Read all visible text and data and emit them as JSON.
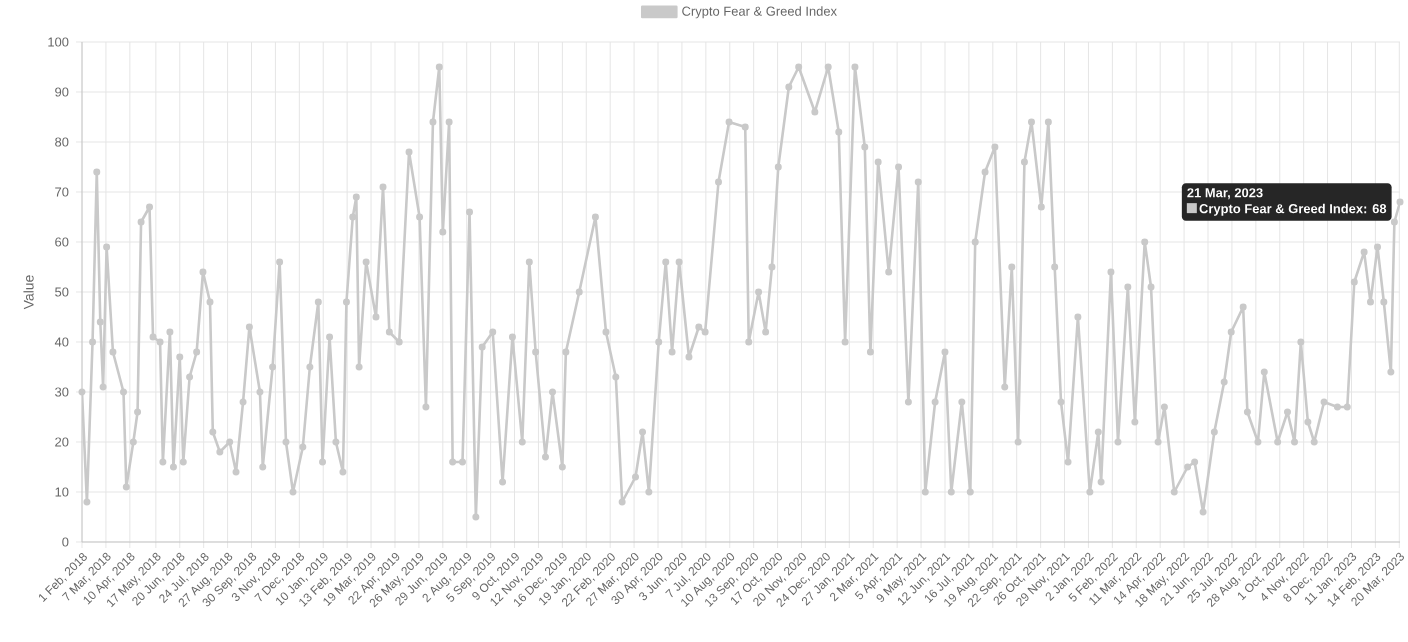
{
  "chart_data": {
    "type": "line",
    "ylabel": "Value",
    "legend": "top",
    "grid": true,
    "marker": "circle",
    "line_style": "solid",
    "xlim": [
      "2018-02-01",
      "2023-03-21"
    ],
    "ylim": [
      0,
      100
    ],
    "yticks": [
      0,
      10,
      20,
      30,
      40,
      50,
      60,
      70,
      80,
      90,
      100
    ],
    "xticks": [
      {
        "value": "2018-02-01",
        "label": "1 Feb, 2018"
      },
      {
        "value": "2018-03-07",
        "label": "7 Mar, 2018"
      },
      {
        "value": "2018-04-10",
        "label": "10 Apr, 2018"
      },
      {
        "value": "2018-05-17",
        "label": "17 May, 2018"
      },
      {
        "value": "2018-06-20",
        "label": "20 Jun, 2018"
      },
      {
        "value": "2018-07-24",
        "label": "24 Jul, 2018"
      },
      {
        "value": "2018-08-27",
        "label": "27 Aug, 2018"
      },
      {
        "value": "2018-09-30",
        "label": "30 Sep, 2018"
      },
      {
        "value": "2018-11-03",
        "label": "3 Nov, 2018"
      },
      {
        "value": "2018-12-07",
        "label": "7 Dec, 2018"
      },
      {
        "value": "2019-01-10",
        "label": "10 Jan, 2019"
      },
      {
        "value": "2019-02-13",
        "label": "13 Feb, 2019"
      },
      {
        "value": "2019-03-19",
        "label": "19 Mar, 2019"
      },
      {
        "value": "2019-04-22",
        "label": "22 Apr, 2019"
      },
      {
        "value": "2019-05-26",
        "label": "26 May, 2019"
      },
      {
        "value": "2019-06-29",
        "label": "29 Jun, 2019"
      },
      {
        "value": "2019-08-02",
        "label": "2 Aug, 2019"
      },
      {
        "value": "2019-09-05",
        "label": "5 Sep, 2019"
      },
      {
        "value": "2019-10-09",
        "label": "9 Oct, 2019"
      },
      {
        "value": "2019-11-12",
        "label": "12 Nov, 2019"
      },
      {
        "value": "2019-12-16",
        "label": "16 Dec, 2019"
      },
      {
        "value": "2020-01-19",
        "label": "19 Jan, 2020"
      },
      {
        "value": "2020-02-22",
        "label": "22 Feb, 2020"
      },
      {
        "value": "2020-03-27",
        "label": "27 Mar, 2020"
      },
      {
        "value": "2020-04-30",
        "label": "30 Apr, 2020"
      },
      {
        "value": "2020-06-03",
        "label": "3 Jun, 2020"
      },
      {
        "value": "2020-07-07",
        "label": "7 Jul, 2020"
      },
      {
        "value": "2020-08-10",
        "label": "10 Aug, 2020"
      },
      {
        "value": "2020-09-13",
        "label": "13 Sep, 2020"
      },
      {
        "value": "2020-10-17",
        "label": "17 Oct, 2020"
      },
      {
        "value": "2020-11-20",
        "label": "20 Nov, 2020"
      },
      {
        "value": "2020-12-24",
        "label": "24 Dec, 2020"
      },
      {
        "value": "2021-01-27",
        "label": "27 Jan, 2021"
      },
      {
        "value": "2021-03-02",
        "label": "2 Mar, 2021"
      },
      {
        "value": "2021-04-05",
        "label": "5 Apr, 2021"
      },
      {
        "value": "2021-05-09",
        "label": "9 May, 2021"
      },
      {
        "value": "2021-06-12",
        "label": "12 Jun, 2021"
      },
      {
        "value": "2021-07-16",
        "label": "16 Jul, 2021"
      },
      {
        "value": "2021-08-19",
        "label": "19 Aug, 2021"
      },
      {
        "value": "2021-09-22",
        "label": "22 Sep, 2021"
      },
      {
        "value": "2021-10-26",
        "label": "26 Oct, 2021"
      },
      {
        "value": "2021-11-29",
        "label": "29 Nov, 2021"
      },
      {
        "value": "2022-01-02",
        "label": "2 Jan, 2022"
      },
      {
        "value": "2022-02-05",
        "label": "5 Feb, 2022"
      },
      {
        "value": "2022-03-11",
        "label": "11 Mar, 2022"
      },
      {
        "value": "2022-04-14",
        "label": "14 Apr, 2022"
      },
      {
        "value": "2022-05-18",
        "label": "18 May, 2022"
      },
      {
        "value": "2022-06-21",
        "label": "21 Jun, 2022"
      },
      {
        "value": "2022-07-25",
        "label": "25 Jul, 2022"
      },
      {
        "value": "2022-08-28",
        "label": "28 Aug, 2022"
      },
      {
        "value": "2022-10-01",
        "label": "1 Oct, 2022"
      },
      {
        "value": "2022-11-04",
        "label": "4 Nov, 2022"
      },
      {
        "value": "2022-12-08",
        "label": "8 Dec, 2022"
      },
      {
        "value": "2023-01-11",
        "label": "11 Jan, 2023"
      },
      {
        "value": "2023-02-14",
        "label": "14 Feb, 2023"
      },
      {
        "value": "2023-03-20",
        "label": "20 Mar, 2023"
      }
    ],
    "annotations": [
      "21 Mar, 2023",
      "Crypto Fear & Greed Index: 68"
    ],
    "series": [
      {
        "name": "Crypto Fear & Greed Index",
        "color": "#c9c9c9",
        "x": [
          "2018-02-01",
          "2018-02-08",
          "2018-02-16",
          "2018-02-22",
          "2018-02-27",
          "2018-03-03",
          "2018-03-08",
          "2018-03-17",
          "2018-04-01",
          "2018-04-05",
          "2018-04-15",
          "2018-04-21",
          "2018-04-26",
          "2018-05-08",
          "2018-05-13",
          "2018-05-23",
          "2018-05-27",
          "2018-06-06",
          "2018-06-11",
          "2018-06-20",
          "2018-06-25",
          "2018-07-04",
          "2018-07-14",
          "2018-07-23",
          "2018-08-02",
          "2018-08-06",
          "2018-08-16",
          "2018-08-30",
          "2018-09-08",
          "2018-09-18",
          "2018-09-27",
          "2018-10-12",
          "2018-10-16",
          "2018-10-30",
          "2018-11-09",
          "2018-11-18",
          "2018-11-28",
          "2018-12-12",
          "2018-12-22",
          "2019-01-03",
          "2019-01-09",
          "2019-01-19",
          "2019-01-28",
          "2019-02-07",
          "2019-02-12",
          "2019-02-21",
          "2019-02-26",
          "2019-03-02",
          "2019-03-12",
          "2019-03-26",
          "2019-04-05",
          "2019-04-14",
          "2019-04-28",
          "2019-05-12",
          "2019-05-27",
          "2019-06-05",
          "2019-06-15",
          "2019-06-24",
          "2019-06-29",
          "2019-07-08",
          "2019-07-13",
          "2019-07-27",
          "2019-08-06",
          "2019-08-15",
          "2019-08-24",
          "2019-09-08",
          "2019-09-22",
          "2019-10-06",
          "2019-10-20",
          "2019-10-30",
          "2019-11-08",
          "2019-11-22",
          "2019-12-02",
          "2019-12-16",
          "2019-12-21",
          "2020-01-09",
          "2020-02-01",
          "2020-02-16",
          "2020-03-01",
          "2020-03-10",
          "2020-03-29",
          "2020-04-08",
          "2020-04-17",
          "2020-05-01",
          "2020-05-11",
          "2020-05-20",
          "2020-05-30",
          "2020-06-13",
          "2020-06-27",
          "2020-07-06",
          "2020-07-25",
          "2020-08-09",
          "2020-09-01",
          "2020-09-06",
          "2020-09-20",
          "2020-09-30",
          "2020-10-09",
          "2020-10-18",
          "2020-11-02",
          "2020-11-16",
          "2020-12-09",
          "2020-12-28",
          "2021-01-12",
          "2021-01-21",
          "2021-02-04",
          "2021-02-18",
          "2021-02-26",
          "2021-03-09",
          "2021-03-24",
          "2021-04-07",
          "2021-04-21",
          "2021-05-05",
          "2021-05-15",
          "2021-05-29",
          "2021-06-12",
          "2021-06-21",
          "2021-07-06",
          "2021-07-18",
          "2021-07-25",
          "2021-08-08",
          "2021-08-22",
          "2021-09-05",
          "2021-09-15",
          "2021-09-24",
          "2021-10-03",
          "2021-10-13",
          "2021-10-27",
          "2021-11-06",
          "2021-11-15",
          "2021-11-24",
          "2021-12-04",
          "2021-12-18",
          "2022-01-04",
          "2022-01-16",
          "2022-01-20",
          "2022-02-03",
          "2022-02-13",
          "2022-02-27",
          "2022-03-09",
          "2022-03-23",
          "2022-04-01",
          "2022-04-11",
          "2022-04-20",
          "2022-05-04",
          "2022-05-23",
          "2022-06-02",
          "2022-06-14",
          "2022-06-30",
          "2022-07-14",
          "2022-07-24",
          "2022-08-10",
          "2022-08-16",
          "2022-08-31",
          "2022-09-09",
          "2022-09-28",
          "2022-10-12",
          "2022-10-22",
          "2022-10-31",
          "2022-11-10",
          "2022-11-19",
          "2022-12-03",
          "2022-12-22",
          "2023-01-05",
          "2023-01-15",
          "2023-01-29",
          "2023-02-07",
          "2023-02-17",
          "2023-02-26",
          "2023-03-08",
          "2023-03-13",
          "2023-03-21"
        ],
        "values": [
          30,
          8,
          40,
          74,
          44,
          31,
          59,
          38,
          30,
          11,
          20,
          26,
          64,
          67,
          41,
          40,
          16,
          42,
          15,
          37,
          16,
          33,
          38,
          54,
          48,
          22,
          18,
          20,
          14,
          28,
          43,
          30,
          15,
          35,
          56,
          20,
          10,
          19,
          35,
          48,
          16,
          41,
          20,
          14,
          48,
          65,
          69,
          35,
          56,
          45,
          71,
          42,
          40,
          78,
          65,
          27,
          84,
          95,
          62,
          84,
          16,
          16,
          66,
          5,
          39,
          42,
          12,
          41,
          20,
          56,
          38,
          17,
          30,
          15,
          38,
          50,
          65,
          42,
          33,
          8,
          13,
          22,
          10,
          40,
          56,
          38,
          56,
          37,
          43,
          42,
          72,
          84,
          83,
          40,
          50,
          42,
          55,
          75,
          91,
          95,
          86,
          95,
          82,
          40,
          95,
          79,
          38,
          76,
          54,
          75,
          28,
          72,
          10,
          28,
          38,
          10,
          28,
          10,
          60,
          74,
          79,
          31,
          55,
          20,
          76,
          84,
          67,
          84,
          55,
          28,
          16,
          45,
          10,
          22,
          12,
          54,
          20,
          51,
          24,
          60,
          51,
          20,
          27,
          10,
          15,
          16,
          6,
          22,
          32,
          42,
          47,
          26,
          20,
          34,
          20,
          26,
          20,
          40,
          24,
          20,
          28,
          27,
          27,
          52,
          58,
          48,
          59,
          48,
          34,
          64,
          68
        ]
      }
    ]
  }
}
